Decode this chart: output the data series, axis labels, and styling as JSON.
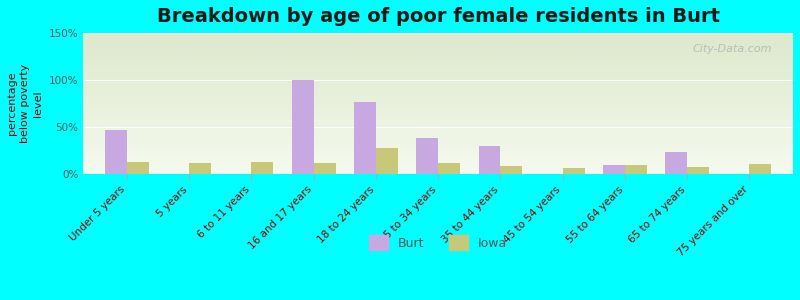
{
  "title": "Breakdown by age of poor female residents in Burt",
  "ylabel": "percentage\nbelow poverty\nlevel",
  "categories": [
    "Under 5 years",
    "5 years",
    "6 to 11 years",
    "16 and 17 years",
    "18 to 24 years",
    "25 to 34 years",
    "35 to 44 years",
    "45 to 54 years",
    "55 to 64 years",
    "65 to 74 years",
    "75 years and over"
  ],
  "burt_values": [
    47,
    0,
    0,
    100,
    77,
    38,
    30,
    0,
    10,
    23,
    0
  ],
  "iowa_values": [
    13,
    12,
    13,
    12,
    28,
    12,
    8,
    6,
    10,
    7,
    11
  ],
  "burt_color": "#c8a8e0",
  "iowa_color": "#c8c87a",
  "background_outer": "#00ffff",
  "background_plot_top": "#dde8cc",
  "background_plot_bottom": "#f5faee",
  "ylim": [
    0,
    150
  ],
  "yticks": [
    0,
    50,
    100,
    150
  ],
  "ytick_labels": [
    "0%",
    "50%",
    "100%",
    "150%"
  ],
  "bar_width": 0.35,
  "title_fontsize": 14,
  "axis_label_fontsize": 8,
  "tick_fontsize": 7.5,
  "legend_labels": [
    "Burt",
    "Iowa"
  ],
  "watermark": "City-Data.com"
}
